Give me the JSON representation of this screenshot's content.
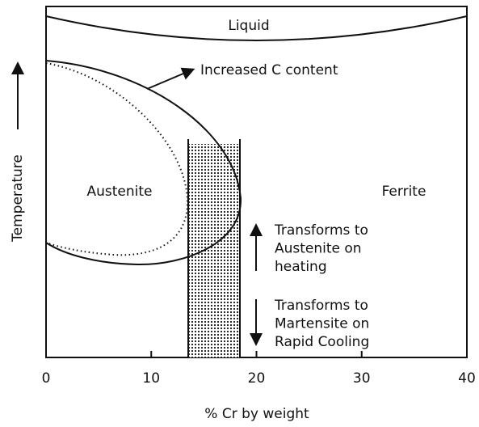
{
  "diagram": {
    "regions": {
      "liquid": "Liquid",
      "austenite": "Austenite",
      "ferrite": "Ferrite"
    },
    "annotation": "Increased C content",
    "heating_note": [
      "Transforms to",
      "Austenite on",
      "heating"
    ],
    "cooling_note": [
      "Transforms to",
      "Martensite on",
      "Rapid Cooling"
    ],
    "x_axis": {
      "label": "% Cr by weight",
      "ticks": [
        0,
        10,
        20,
        30,
        40
      ]
    },
    "y_axis": {
      "label": "Temperature"
    }
  }
}
